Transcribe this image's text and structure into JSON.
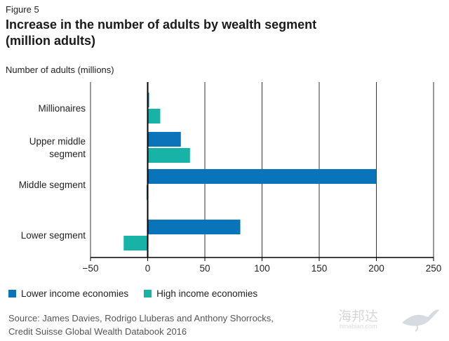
{
  "figure_label": "Figure 5",
  "title_line1": "Increase in the number of adults by wealth segment",
  "title_line2": "(million adults)",
  "y_axis_title": "Number of adults (millions)",
  "colors": {
    "lower": "#0a74bb",
    "high": "#17b3a7",
    "axis": "#000000",
    "grid": "#000000"
  },
  "chart_data": {
    "type": "bar",
    "orientation": "horizontal",
    "categories": [
      "Millionaires",
      "Upper middle segment",
      "Middle segment",
      "Lower segment"
    ],
    "category_lines": [
      [
        "Millionaires"
      ],
      [
        "Upper middle",
        "segment"
      ],
      [
        "Middle segment"
      ],
      [
        "Lower segment"
      ]
    ],
    "series": [
      {
        "name": "Lower income economies",
        "values": [
          1,
          29,
          200,
          81
        ]
      },
      {
        "name": "High income economies",
        "values": [
          11,
          37,
          -1,
          -21
        ]
      }
    ],
    "xlim": [
      -50,
      250
    ],
    "xticks": [
      -50,
      0,
      50,
      100,
      150,
      200,
      250
    ],
    "xtick_labels": [
      "−50",
      "0",
      "50",
      "100",
      "150",
      "200",
      "250"
    ],
    "ylabel": "Number of adults (millions)",
    "grid": true,
    "legend": "bottom-left"
  },
  "legend": {
    "lower": "Lower income economies",
    "high": "High income economies"
  },
  "source_line1": "Source: James Davies, Rodrigo Lluberas and Anthony Shorrocks,",
  "source_line2": "Credit Suisse Global Wealth Databook 2016",
  "watermark_text": "海邦达",
  "watermark_sub": "hinabian.com"
}
